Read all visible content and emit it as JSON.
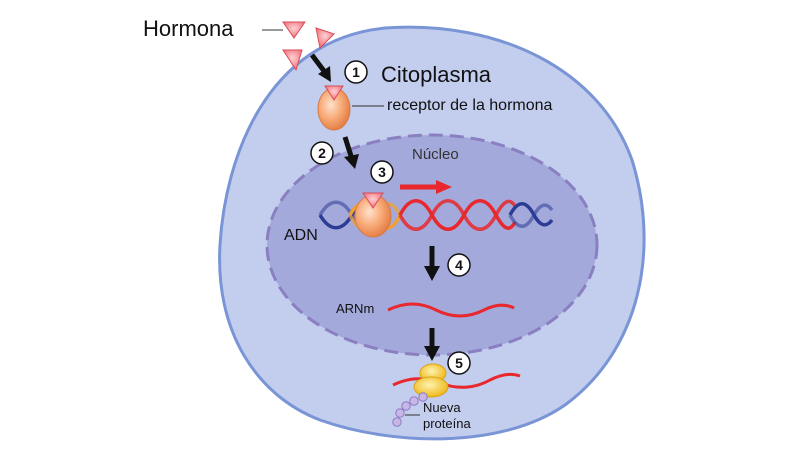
{
  "labels": {
    "hormona": "Hormona",
    "citoplasma": "Citoplasma",
    "receptor": "receptor de la hormona",
    "nucleo": "Núcleo",
    "adn": "ADN",
    "arnm": "ARNm",
    "nueva": "Nueva",
    "proteina": "proteína"
  },
  "steps": [
    "1",
    "2",
    "3",
    "4",
    "5"
  ],
  "colors": {
    "cell_fill": "#c3cdee",
    "cell_border": "#7a95d6",
    "nucleus_fill": "#a4a9dc",
    "nucleus_border": "#8a7fc0",
    "hormone": "#f07a82",
    "receptor": "#f4a16c",
    "dna_red": "#e8282c",
    "dna_blue": "#2c3c94",
    "dna_orange": "#f0a032",
    "ribosome": "#f5c52a",
    "protein_beads": "#c7b6e6",
    "arrow": "#111111"
  }
}
